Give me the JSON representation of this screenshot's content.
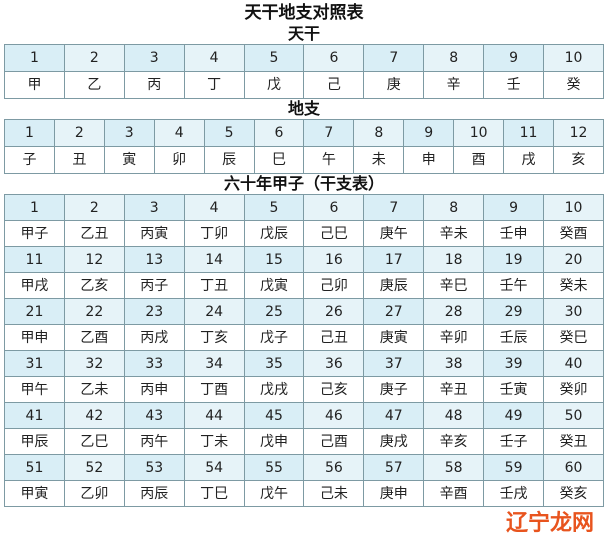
{
  "title": "天干地支对照表",
  "tiangan": {
    "label": "天干",
    "numbers": [
      "1",
      "2",
      "3",
      "4",
      "5",
      "6",
      "7",
      "8",
      "9",
      "10"
    ],
    "names": [
      "甲",
      "乙",
      "丙",
      "丁",
      "戊",
      "己",
      "庚",
      "辛",
      "壬",
      "癸"
    ]
  },
  "dizhi": {
    "label": "地支",
    "numbers": [
      "1",
      "2",
      "3",
      "4",
      "5",
      "6",
      "7",
      "8",
      "9",
      "10",
      "11",
      "12"
    ],
    "names": [
      "子",
      "丑",
      "寅",
      "卯",
      "辰",
      "巳",
      "午",
      "未",
      "申",
      "酉",
      "戌",
      "亥"
    ]
  },
  "jiazi": {
    "label": "六十年甲子（干支表）",
    "rows": [
      {
        "numbers": [
          "1",
          "2",
          "3",
          "4",
          "5",
          "6",
          "7",
          "8",
          "9",
          "10"
        ],
        "names": [
          "甲子",
          "乙丑",
          "丙寅",
          "丁卯",
          "戊辰",
          "己巳",
          "庚午",
          "辛未",
          "壬申",
          "癸酉"
        ]
      },
      {
        "numbers": [
          "11",
          "12",
          "13",
          "14",
          "15",
          "16",
          "17",
          "18",
          "19",
          "20"
        ],
        "names": [
          "甲戌",
          "乙亥",
          "丙子",
          "丁丑",
          "戊寅",
          "己卯",
          "庚辰",
          "辛巳",
          "壬午",
          "癸未"
        ]
      },
      {
        "numbers": [
          "21",
          "22",
          "23",
          "24",
          "25",
          "26",
          "27",
          "28",
          "29",
          "30"
        ],
        "names": [
          "甲申",
          "乙酉",
          "丙戌",
          "丁亥",
          "戊子",
          "己丑",
          "庚寅",
          "辛卯",
          "壬辰",
          "癸巳"
        ]
      },
      {
        "numbers": [
          "31",
          "32",
          "33",
          "34",
          "35",
          "36",
          "37",
          "38",
          "39",
          "40"
        ],
        "names": [
          "甲午",
          "乙未",
          "丙申",
          "丁酉",
          "戊戌",
          "己亥",
          "庚子",
          "辛丑",
          "壬寅",
          "癸卯"
        ]
      },
      {
        "numbers": [
          "41",
          "42",
          "43",
          "44",
          "45",
          "46",
          "47",
          "48",
          "49",
          "50"
        ],
        "names": [
          "甲辰",
          "乙巳",
          "丙午",
          "丁未",
          "戊申",
          "己酉",
          "庚戌",
          "辛亥",
          "壬子",
          "癸丑"
        ]
      },
      {
        "numbers": [
          "51",
          "52",
          "53",
          "54",
          "55",
          "56",
          "57",
          "58",
          "59",
          "60"
        ],
        "names": [
          "甲寅",
          "乙卯",
          "丙辰",
          "丁巳",
          "戊午",
          "己未",
          "庚申",
          "辛酉",
          "壬戌",
          "癸亥"
        ]
      }
    ]
  },
  "watermark": "辽宁龙网"
}
